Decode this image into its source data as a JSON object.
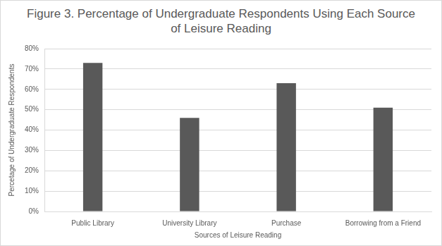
{
  "chart_data": {
    "type": "bar",
    "title": "Figure 3. Percentage of Undergraduate Respondents Using Each Source of Leisure Reading",
    "x_label": "Sources of Leisure Reading",
    "y_label": "Percetage of Undergraduate Respondents",
    "categories": [
      "Public Library",
      "University Library",
      "Purchase",
      "Borrowing from a Friend"
    ],
    "values": [
      73,
      46,
      63,
      51
    ],
    "color": "#595959",
    "ylim": [
      0,
      80
    ],
    "yticks": [
      {
        "value": 0,
        "label": "0%"
      },
      {
        "value": 10,
        "label": "10%"
      },
      {
        "value": 20,
        "label": "20%"
      },
      {
        "value": 30,
        "label": "30%"
      },
      {
        "value": 40,
        "label": "40%"
      },
      {
        "value": 50,
        "label": "50%"
      },
      {
        "value": 60,
        "label": "60%"
      },
      {
        "value": 70,
        "label": "70%"
      },
      {
        "value": 80,
        "label": "80%"
      }
    ],
    "grid": true
  }
}
